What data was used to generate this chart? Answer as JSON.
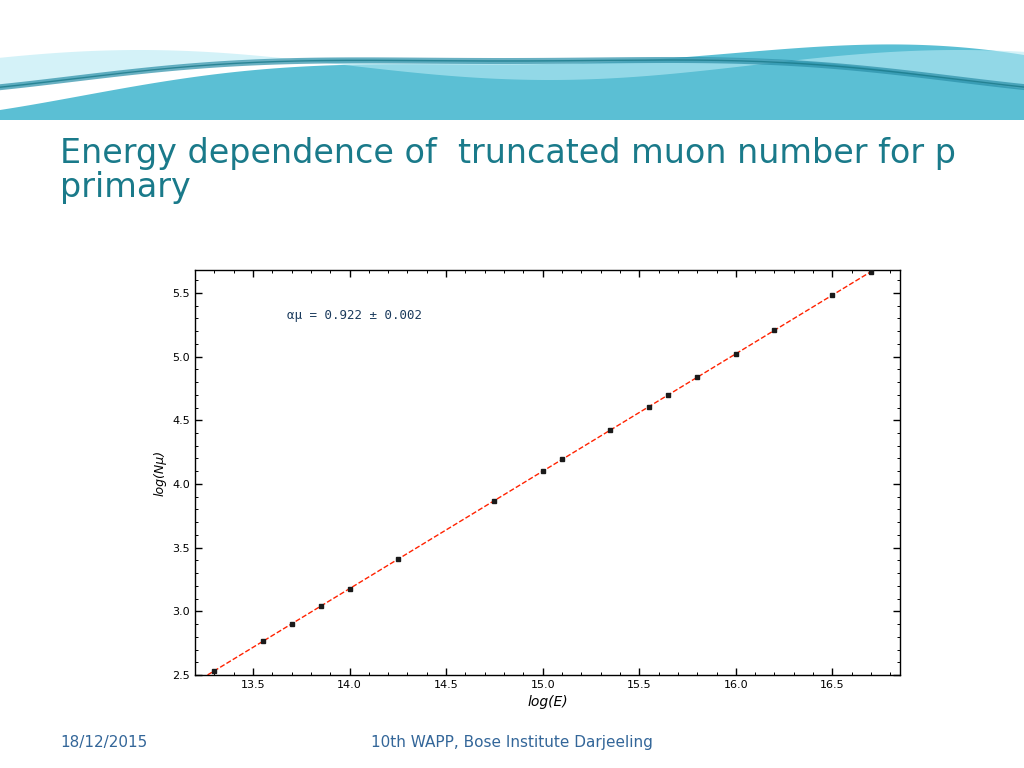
{
  "title_line1": "Energy dependence of  truncated muon number for p",
  "title_line2": "primary",
  "title_color": "#1a7a8a",
  "title_fontsize": 24,
  "xlabel": "log(E)",
  "ylabel": "log(Nμ)",
  "xlabel_fontsize": 10,
  "ylabel_fontsize": 9,
  "annotation": "αμ = 0.922 ± 0.002",
  "annotation_fontsize": 9,
  "annotation_color": "#1a3a5c",
  "xmin": 13.2,
  "xmax": 16.85,
  "ymin": 2.55,
  "ymax": 5.68,
  "xticks": [
    13.5,
    14.0,
    14.5,
    15.0,
    15.5,
    16.0,
    16.5
  ],
  "yticks": [
    2.5,
    3.0,
    3.5,
    4.0,
    4.5,
    5.0,
    5.5
  ],
  "slope": 0.922,
  "intercept": -9.73,
  "data_x": [
    13.3,
    13.55,
    13.7,
    13.85,
    14.0,
    14.25,
    14.75,
    15.0,
    15.1,
    15.35,
    15.55,
    15.65,
    15.8,
    16.0,
    16.2,
    16.5,
    16.7
  ],
  "data_color": "#1a1a1a",
  "line_color": "#ff2200",
  "background_color": "#ffffff",
  "footer_left": "18/12/2015",
  "footer_center": "10th WAPP, Bose Institute Darjeeling",
  "footer_color": "#336699",
  "footer_fontsize": 11,
  "wave_bg_color": "#5bbfd4",
  "wave_light_color": "#8dd8e8",
  "wave_lighter_color": "#b8eaf4"
}
